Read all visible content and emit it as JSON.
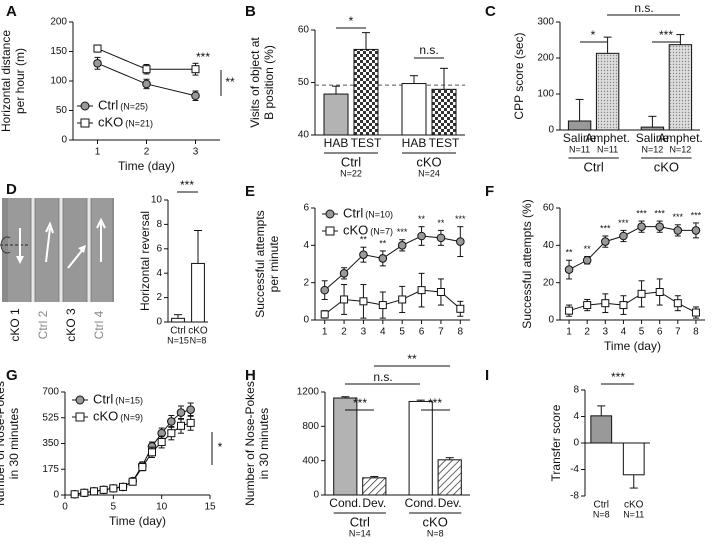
{
  "chart_data": [
    {
      "panel": "A",
      "type": "line",
      "ylabel": [
        "Horizontal distance",
        "per hour (m)"
      ],
      "xlabel": "Time (day)",
      "x": [
        1,
        2,
        3
      ],
      "xlim": [
        0.5,
        3.5
      ],
      "xticks": [
        1,
        2,
        3
      ],
      "ylim": [
        0,
        200
      ],
      "yticks": [
        0,
        50,
        100,
        150,
        200
      ],
      "series": [
        {
          "name": "Ctrl",
          "n": "(N=25)",
          "color": "#999999",
          "marker": "circle",
          "values": [
            130,
            95,
            75
          ],
          "errors": [
            10,
            8,
            8
          ]
        },
        {
          "name": "cKO",
          "n": "(N=21)",
          "color": "#ffffff",
          "marker": "square",
          "values": [
            155,
            120,
            120
          ],
          "errors": [
            6,
            8,
            10
          ]
        }
      ],
      "annotations": [
        "***",
        "**"
      ]
    },
    {
      "panel": "B",
      "type": "bar",
      "ylabel": [
        "Visits of object at",
        "B position (%)"
      ],
      "categories": [
        "HAB",
        "TEST",
        "HAB",
        "TEST"
      ],
      "values": [
        47.8,
        56.3,
        49.8,
        48.7
      ],
      "errors": [
        1.5,
        3.2,
        1.5,
        4
      ],
      "fills": [
        "#b3b3b3",
        "checkered",
        "#ffffff",
        "checkered"
      ],
      "groups": [
        {
          "name": "Ctrl",
          "n": "N=22"
        },
        {
          "name": "cKO",
          "n": "N=24"
        }
      ],
      "ylim": [
        40,
        60
      ],
      "yticks": [
        40,
        50,
        60
      ],
      "refline": 49.5,
      "annotations": [
        "*",
        "n.s."
      ]
    },
    {
      "panel": "C",
      "type": "bar",
      "ylabel": [
        "CPP score (sec)"
      ],
      "categories": [
        "Saline",
        "Amphet.",
        "Saline",
        "Amphet."
      ],
      "category_notes": [
        "N=11",
        "N=11",
        "N=12",
        "N=12"
      ],
      "values": [
        25,
        213,
        8,
        237
      ],
      "errors": [
        60,
        45,
        30,
        28
      ],
      "fills": [
        "#999999",
        "dotted",
        "#999999",
        "dotted"
      ],
      "groups": [
        {
          "name": "Ctrl"
        },
        {
          "name": "cKO"
        }
      ],
      "ylim": [
        0,
        300
      ],
      "yticks": [
        0,
        100,
        200,
        300
      ],
      "annotations": [
        "*",
        "n.s.",
        "***"
      ]
    },
    {
      "panel": "D",
      "type": "bar",
      "photo_labels": [
        "cKO 1",
        "Ctrl 2",
        "cKO 3",
        "Ctrl 4"
      ],
      "ylabel": [
        "Horizontal reversal"
      ],
      "categories": [
        "Ctrl",
        "cKO"
      ],
      "category_notes": [
        "N=15",
        "N=8"
      ],
      "values": [
        0.3,
        4.8
      ],
      "errors": [
        0.3,
        2.7
      ],
      "fills": [
        "#ffffff",
        "#ffffff"
      ],
      "ylim": [
        0,
        10
      ],
      "yticks": [
        0,
        2,
        4,
        6,
        8,
        10
      ],
      "annotations": [
        "***"
      ]
    },
    {
      "panel": "E",
      "type": "line",
      "ylabel": [
        "Successful attempts",
        "per minute"
      ],
      "x": [
        1,
        2,
        3,
        4,
        5,
        6,
        7,
        8
      ],
      "xlim": [
        0.5,
        8.5
      ],
      "xticks": [
        1,
        2,
        3,
        4,
        5,
        6,
        7,
        8
      ],
      "ylim": [
        0,
        6
      ],
      "yticks": [
        0,
        2,
        4,
        6
      ],
      "series": [
        {
          "name": "Ctrl",
          "n": "(N=10)",
          "color": "#999999",
          "marker": "circle",
          "values": [
            1.6,
            2.5,
            3.5,
            3.3,
            4.0,
            4.5,
            4.4,
            4.2
          ],
          "errors": [
            0.5,
            0.3,
            0.4,
            0.4,
            0.3,
            0.5,
            0.4,
            0.8
          ]
        },
        {
          "name": "cKO",
          "n": "(N=7)",
          "color": "#ffffff",
          "marker": "square",
          "values": [
            0.3,
            1.1,
            1.0,
            0.8,
            1.1,
            1.6,
            1.5,
            0.6
          ],
          "errors": [
            0.2,
            0.8,
            0.9,
            0.7,
            0.7,
            0.9,
            0.7,
            0.4
          ]
        }
      ],
      "significance": [
        null,
        null,
        "**",
        "**",
        "***",
        "**",
        "**",
        "***"
      ]
    },
    {
      "panel": "F",
      "type": "line",
      "ylabel": [
        "Successful attempts  (%)"
      ],
      "xlabel": "Time (day)",
      "x": [
        1,
        2,
        3,
        4,
        5,
        6,
        7,
        8
      ],
      "xlim": [
        0.5,
        8.5
      ],
      "xticks": [
        1,
        2,
        3,
        4,
        5,
        6,
        7,
        8
      ],
      "ylim": [
        0,
        60
      ],
      "yticks": [
        0,
        20,
        40,
        60
      ],
      "series": [
        {
          "name": "Ctrl",
          "color": "#999999",
          "marker": "circle",
          "values": [
            27,
            32,
            42,
            45,
            50,
            50,
            48,
            48
          ],
          "errors": [
            5,
            2,
            3,
            3,
            3,
            3,
            3,
            4
          ]
        },
        {
          "name": "cKO",
          "color": "#ffffff",
          "marker": "square",
          "values": [
            5,
            8,
            9,
            8,
            14,
            15,
            9,
            4
          ],
          "errors": [
            3,
            3,
            5,
            5,
            7,
            7,
            4,
            3
          ]
        }
      ],
      "significance": [
        "**",
        "**",
        "***",
        "***",
        "***",
        "***",
        "***",
        "***"
      ]
    },
    {
      "panel": "G",
      "type": "line",
      "ylabel": [
        "Number of Nose-Pokes",
        "in 30 minutes"
      ],
      "xlabel": "Time (day)",
      "x": [
        1,
        2,
        3,
        4,
        5,
        6,
        7,
        8,
        9,
        10,
        11,
        12,
        13
      ],
      "xlim": [
        0,
        15
      ],
      "xticks": [
        0,
        5,
        10,
        15
      ],
      "ylim": [
        0,
        700
      ],
      "yticks": [
        0,
        175,
        350,
        525,
        700
      ],
      "series": [
        {
          "name": "Ctrl",
          "n": "(N=15)",
          "color": "#999999",
          "marker": "circle",
          "values": [
            5,
            15,
            25,
            35,
            45,
            55,
            95,
            200,
            330,
            420,
            500,
            560,
            580
          ],
          "errors": [
            5,
            5,
            8,
            8,
            10,
            10,
            15,
            25,
            30,
            35,
            40,
            45,
            45
          ]
        },
        {
          "name": "cKO",
          "n": "(N=9)",
          "color": "#ffffff",
          "marker": "square",
          "values": [
            5,
            15,
            25,
            35,
            45,
            55,
            90,
            190,
            290,
            360,
            420,
            470,
            490
          ],
          "errors": [
            5,
            5,
            8,
            8,
            10,
            10,
            15,
            25,
            35,
            40,
            45,
            50,
            50
          ]
        }
      ],
      "annotations": [
        "*"
      ]
    },
    {
      "panel": "H",
      "type": "bar",
      "ylabel": [
        "Number of Nose-Pokes",
        "in 30 minutes"
      ],
      "categories": [
        "Cond.",
        "Dev.",
        "Cond.",
        "Dev."
      ],
      "values": [
        1130,
        200,
        1090,
        410
      ],
      "errors": [
        15,
        15,
        15,
        25
      ],
      "fills": [
        "#b3b3b3",
        "hatched",
        "#ffffff",
        "hatched"
      ],
      "groups": [
        {
          "name": "Ctrl",
          "n": "N=14"
        },
        {
          "name": "cKO",
          "n": "N=8"
        }
      ],
      "ylim": [
        0,
        1200
      ],
      "yticks": [
        0,
        400,
        800,
        1200
      ],
      "annotations": [
        "***",
        "n.s.",
        "**",
        "***"
      ]
    },
    {
      "panel": "I",
      "type": "bar",
      "ylabel": [
        "Transfer score"
      ],
      "categories": [
        "Ctrl",
        "cKO"
      ],
      "category_notes": [
        "N=8",
        "N=11"
      ],
      "values": [
        4.1,
        -4.8
      ],
      "errors": [
        1.5,
        2
      ],
      "fills": [
        "#999999",
        "#ffffff"
      ],
      "ylim": [
        -8,
        8
      ],
      "yticks": [
        -8,
        -4,
        0,
        4,
        8
      ],
      "annotations": [
        "***"
      ]
    }
  ]
}
